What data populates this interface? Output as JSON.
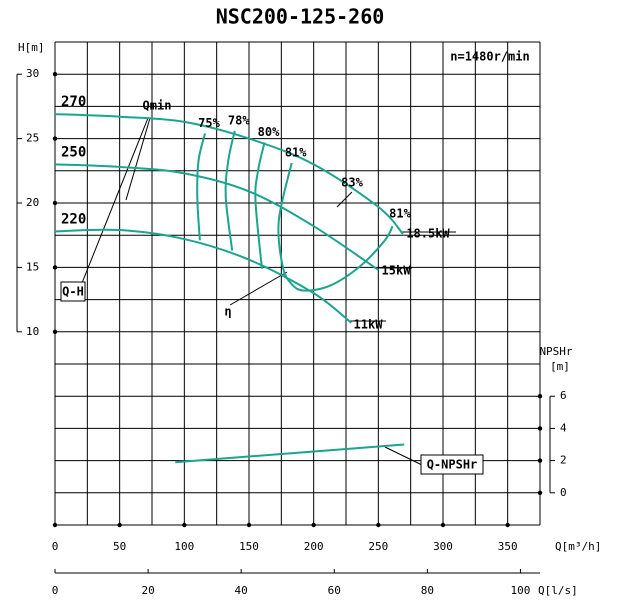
{
  "chart_data": {
    "type": "line",
    "title": "NSC200-125-260",
    "xlabel": "Q[m³/h]",
    "x2label": "Q[l/s]",
    "ylabel": "H[m]",
    "y2label": [
      "NPSHr",
      "[m]"
    ],
    "xlim": [
      0,
      375
    ],
    "xticks": [
      0,
      50,
      100,
      150,
      200,
      250,
      300,
      350
    ],
    "x2lim": [
      0,
      104.2
    ],
    "x2ticks": [
      0,
      20,
      40,
      60,
      80,
      100
    ],
    "ylim": [
      -5,
      32.5
    ],
    "yticks": [
      10,
      15,
      20,
      25,
      30
    ],
    "y2lim": [
      -2,
      28
    ],
    "y2ticks": [
      0,
      2,
      4,
      6
    ],
    "grid": true,
    "annotations": [
      "n=1480r/min",
      "Qmin",
      "83%",
      "81%",
      "η",
      "18.5kW",
      "15kW",
      "11kW",
      "Q-H"
    ],
    "series": [
      {
        "name": "270",
        "color": "#1aa58c",
        "x": [
          0,
          50,
          100,
          150,
          200,
          250,
          269
        ],
        "values": [
          26.9,
          26.7,
          26.3,
          25.0,
          23.0,
          19.7,
          17.6
        ]
      },
      {
        "name": "250",
        "color": "#1aa58c",
        "x": [
          0,
          50,
          100,
          150,
          200,
          250
        ],
        "values": [
          23.0,
          22.8,
          22.3,
          20.9,
          18.2,
          14.8
        ]
      },
      {
        "name": "220",
        "color": "#1aa58c",
        "x": [
          0,
          50,
          100,
          150,
          200,
          229
        ],
        "values": [
          17.8,
          17.9,
          17.2,
          15.6,
          13.0,
          10.7
        ]
      },
      {
        "name": "75%",
        "color": "#1aa58c",
        "x": [
          116,
          111,
          110,
          112
        ],
        "values": [
          25.4,
          23.3,
          20.5,
          17.1
        ]
      },
      {
        "name": "78%",
        "color": "#1aa58c",
        "x": [
          139,
          134,
          132,
          137
        ],
        "values": [
          25.6,
          23.3,
          20.5,
          16.3
        ]
      },
      {
        "name": "80%",
        "color": "#1aa58c",
        "x": [
          162,
          157,
          155,
          160
        ],
        "values": [
          24.7,
          22.5,
          20.2,
          14.9
        ]
      },
      {
        "name": "81%",
        "color": "#1aa58c",
        "x": [
          183,
          173,
          176,
          183,
          193,
          213,
          236,
          255,
          261
        ],
        "values": [
          23.1,
          18.6,
          15.1,
          13.7,
          13.2,
          13.6,
          15.1,
          17.1,
          18.2
        ]
      },
      {
        "name": "Q-NPSHr",
        "color": "#1aa58c",
        "axis": "y2",
        "x": [
          93,
          270
        ],
        "values": [
          1.9,
          3.0
        ]
      }
    ]
  }
}
